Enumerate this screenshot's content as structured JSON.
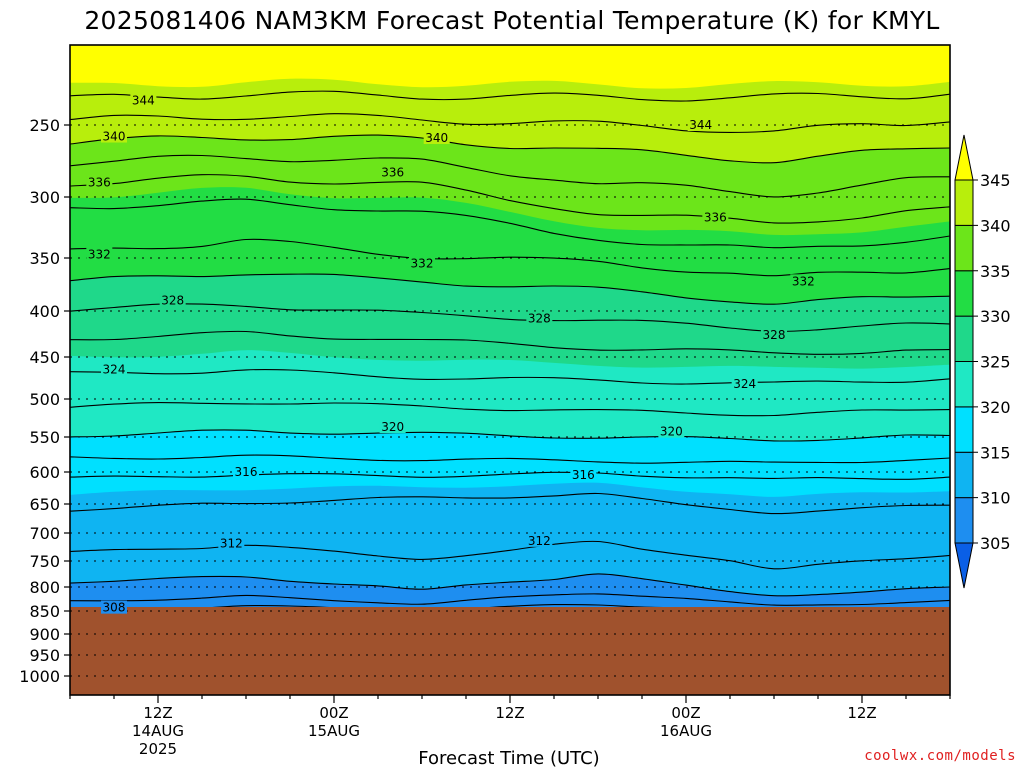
{
  "title": "2025081406 NAM3KM Forecast Potential Temperature (K) for KMYL",
  "credit": "coolwx.com/models",
  "credit_color": "#e02020",
  "ground_color": "#a0522d",
  "chart_data": {
    "type": "heatmap",
    "variable": "Potential Temperature (K)",
    "xlabel": "Forecast Time (UTC)",
    "ylabel": "",
    "x_range_hours": [
      0,
      60
    ],
    "y_levels": [
      250,
      300,
      350,
      400,
      450,
      500,
      550,
      600,
      650,
      700,
      750,
      800,
      850,
      900,
      950,
      1000
    ],
    "y_tick_labels": [
      "250",
      "300",
      "350",
      "400",
      "450",
      "500",
      "550",
      "600",
      "650",
      "700",
      "750",
      "800",
      "850",
      "900",
      "950",
      "1000"
    ],
    "ylim": [
      200,
      1025
    ],
    "x_ticks": [
      {
        "hour": 6,
        "label": "12Z",
        "date": "14AUG",
        "year": "2025"
      },
      {
        "hour": 18,
        "label": "00Z",
        "date": "15AUG",
        "year": ""
      },
      {
        "hour": 30,
        "label": "12Z",
        "date": "",
        "year": ""
      },
      {
        "hour": 42,
        "label": "00Z",
        "date": "16AUG",
        "year": ""
      },
      {
        "hour": 54,
        "label": "12Z",
        "date": "",
        "year": ""
      }
    ],
    "ground_level_hpa": 850,
    "colorbar": {
      "labels": [
        "305",
        "310",
        "315",
        "320",
        "325",
        "330",
        "335",
        "340",
        "345"
      ],
      "levels": [
        305,
        310,
        315,
        320,
        325,
        330,
        335,
        340,
        345
      ],
      "colors": [
        "#0a5fe6",
        "#1e8ef0",
        "#0fb4f2",
        "#00e0ff",
        "#1fe8c4",
        "#1fd88a",
        "#22dd44",
        "#6ce51a",
        "#b8ee0c",
        "#ffff00"
      ]
    },
    "isotherm_interval": 2,
    "contours": [
      {
        "k": 344,
        "pts": [
          [
            0,
            233
          ],
          [
            12,
            230
          ],
          [
            24,
            231
          ],
          [
            36,
            232
          ],
          [
            48,
            232
          ],
          [
            60,
            230
          ]
        ]
      },
      {
        "k": 342,
        "pts": [
          [
            0,
            247
          ],
          [
            12,
            244
          ],
          [
            24,
            246
          ],
          [
            36,
            250
          ],
          [
            48,
            254
          ],
          [
            60,
            248
          ]
        ]
      },
      {
        "k": 340,
        "pts": [
          [
            0,
            262
          ],
          [
            12,
            258
          ],
          [
            24,
            260
          ],
          [
            36,
            268
          ],
          [
            48,
            274
          ],
          [
            60,
            266
          ]
        ]
      },
      {
        "k": 338,
        "pts": [
          [
            0,
            276
          ],
          [
            12,
            272
          ],
          [
            24,
            276
          ],
          [
            36,
            290
          ],
          [
            48,
            298
          ],
          [
            60,
            286
          ]
        ]
      },
      {
        "k": 336,
        "pts": [
          [
            0,
            290
          ],
          [
            12,
            286
          ],
          [
            24,
            292
          ],
          [
            36,
            312
          ],
          [
            48,
            322
          ],
          [
            60,
            308
          ]
        ]
      },
      {
        "k": 334,
        "pts": [
          [
            0,
            308
          ],
          [
            12,
            304
          ],
          [
            24,
            312
          ],
          [
            36,
            334
          ],
          [
            48,
            344
          ],
          [
            60,
            332
          ]
        ]
      },
      {
        "k": 332,
        "pts": [
          [
            0,
            345
          ],
          [
            12,
            336
          ],
          [
            24,
            348
          ],
          [
            36,
            354
          ],
          [
            48,
            368
          ],
          [
            60,
            360
          ]
        ]
      },
      {
        "k": 330,
        "pts": [
          [
            0,
            372
          ],
          [
            12,
            364
          ],
          [
            24,
            372
          ],
          [
            36,
            380
          ],
          [
            48,
            392
          ],
          [
            60,
            386
          ]
        ]
      },
      {
        "k": 328,
        "pts": [
          [
            0,
            398
          ],
          [
            12,
            394
          ],
          [
            24,
            404
          ],
          [
            36,
            410
          ],
          [
            48,
            420
          ],
          [
            60,
            414
          ]
        ]
      },
      {
        "k": 326,
        "pts": [
          [
            0,
            430
          ],
          [
            12,
            424
          ],
          [
            24,
            432
          ],
          [
            36,
            440
          ],
          [
            48,
            446
          ],
          [
            60,
            442
          ]
        ]
      },
      {
        "k": 324,
        "pts": [
          [
            0,
            470
          ],
          [
            12,
            466
          ],
          [
            24,
            474
          ],
          [
            36,
            478
          ],
          [
            48,
            482
          ],
          [
            60,
            476
          ]
        ]
      },
      {
        "k": 322,
        "pts": [
          [
            0,
            510
          ],
          [
            12,
            504
          ],
          [
            24,
            510
          ],
          [
            36,
            516
          ],
          [
            48,
            520
          ],
          [
            60,
            514
          ]
        ]
      },
      {
        "k": 320,
        "pts": [
          [
            0,
            548
          ],
          [
            12,
            542
          ],
          [
            24,
            546
          ],
          [
            36,
            550
          ],
          [
            48,
            554
          ],
          [
            60,
            548
          ]
        ]
      },
      {
        "k": 318,
        "pts": [
          [
            0,
            580
          ],
          [
            12,
            578
          ],
          [
            24,
            582
          ],
          [
            36,
            584
          ],
          [
            48,
            588
          ],
          [
            60,
            580
          ]
        ]
      },
      {
        "k": 316,
        "pts": [
          [
            0,
            610
          ],
          [
            12,
            604
          ],
          [
            24,
            606
          ],
          [
            36,
            602
          ],
          [
            48,
            612
          ],
          [
            60,
            608
          ]
        ]
      },
      {
        "k": 314,
        "pts": [
          [
            0,
            660
          ],
          [
            12,
            648
          ],
          [
            24,
            640
          ],
          [
            36,
            636
          ],
          [
            48,
            664
          ],
          [
            60,
            652
          ]
        ]
      },
      {
        "k": 312,
        "pts": [
          [
            0,
            735
          ],
          [
            12,
            722
          ],
          [
            24,
            746
          ],
          [
            36,
            714
          ],
          [
            48,
            764
          ],
          [
            60,
            740
          ]
        ]
      },
      {
        "k": 310,
        "pts": [
          [
            0,
            790
          ],
          [
            12,
            780
          ],
          [
            24,
            806
          ],
          [
            36,
            776
          ],
          [
            48,
            818
          ],
          [
            60,
            800
          ]
        ]
      },
      {
        "k": 308,
        "pts": [
          [
            0,
            830
          ],
          [
            12,
            820
          ],
          [
            24,
            834
          ],
          [
            36,
            812
          ],
          [
            48,
            840
          ],
          [
            60,
            828
          ]
        ]
      },
      {
        "k": 306,
        "pts": [
          [
            0,
            846
          ],
          [
            12,
            840
          ],
          [
            24,
            848
          ],
          [
            36,
            836
          ],
          [
            48,
            850
          ],
          [
            60,
            846
          ]
        ]
      }
    ],
    "contour_labels": [
      {
        "k": 344,
        "hour": 5,
        "hpa": 234
      },
      {
        "k": 340,
        "hour": 3,
        "hpa": 258
      },
      {
        "k": 340,
        "hour": 25,
        "hpa": 259
      },
      {
        "k": 344,
        "hour": 43,
        "hpa": 250
      },
      {
        "k": 336,
        "hour": 2,
        "hpa": 290
      },
      {
        "k": 336,
        "hour": 22,
        "hpa": 283
      },
      {
        "k": 336,
        "hour": 44,
        "hpa": 317
      },
      {
        "k": 332,
        "hour": 2,
        "hpa": 347
      },
      {
        "k": 332,
        "hour": 24,
        "hpa": 355
      },
      {
        "k": 332,
        "hour": 50,
        "hpa": 372
      },
      {
        "k": 328,
        "hour": 7,
        "hpa": 390
      },
      {
        "k": 328,
        "hour": 32,
        "hpa": 408
      },
      {
        "k": 328,
        "hour": 48,
        "hpa": 426
      },
      {
        "k": 324,
        "hour": 3,
        "hpa": 465
      },
      {
        "k": 324,
        "hour": 46,
        "hpa": 482
      },
      {
        "k": 320,
        "hour": 22,
        "hpa": 537
      },
      {
        "k": 320,
        "hour": 41,
        "hpa": 543
      },
      {
        "k": 316,
        "hour": 12,
        "hpa": 600
      },
      {
        "k": 316,
        "hour": 35,
        "hpa": 605
      },
      {
        "k": 312,
        "hour": 11,
        "hpa": 719
      },
      {
        "k": 312,
        "hour": 32,
        "hpa": 714
      },
      {
        "k": 308,
        "hour": 3,
        "hpa": 843
      }
    ]
  }
}
